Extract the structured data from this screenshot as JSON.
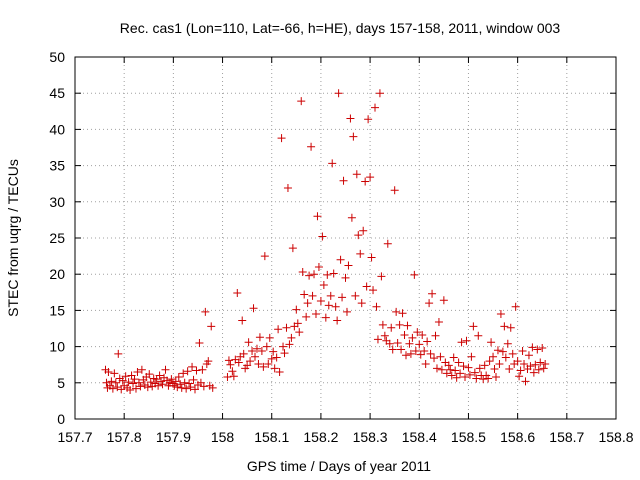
{
  "chart_data": {
    "type": "scatter",
    "title": "Rec. cas1 (Lon=110, Lat=-66, h=HE), days 157-158, 2011, window 003",
    "xlabel": "GPS time / Days of year 2011",
    "ylabel": "STEC from uqrg / TECUs",
    "xlim": [
      157.7,
      158.8
    ],
    "ylim": [
      0,
      50
    ],
    "xticks": [
      "157.7",
      "157.8",
      "157.9",
      "158",
      "158.1",
      "158.2",
      "158.3",
      "158.4",
      "158.5",
      "158.6",
      "158.7",
      "158.8"
    ],
    "yticks": [
      "0",
      "5",
      "10",
      "15",
      "20",
      "25",
      "30",
      "35",
      "40",
      "45",
      "50"
    ],
    "grid": true,
    "marker": "plus",
    "color": "#cc0000",
    "points": [
      [
        157.762,
        6.8
      ],
      [
        157.764,
        5.0
      ],
      [
        157.766,
        4.3
      ],
      [
        157.768,
        6.5
      ],
      [
        157.771,
        4.6
      ],
      [
        157.774,
        5.2
      ],
      [
        157.777,
        4.2
      ],
      [
        157.78,
        6.3
      ],
      [
        157.783,
        5.0
      ],
      [
        157.786,
        4.4
      ],
      [
        157.788,
        9.0
      ],
      [
        157.791,
        5.6
      ],
      [
        157.794,
        4.1
      ],
      [
        157.797,
        5.3
      ],
      [
        157.8,
        4.6
      ],
      [
        157.803,
        5.9
      ],
      [
        157.806,
        4.3
      ],
      [
        157.809,
        5.1
      ],
      [
        157.812,
        4.0
      ],
      [
        157.815,
        6.0
      ],
      [
        157.818,
        4.9
      ],
      [
        157.821,
        5.5
      ],
      [
        157.824,
        4.2
      ],
      [
        157.827,
        6.5
      ],
      [
        157.83,
        5.0
      ],
      [
        157.833,
        4.5
      ],
      [
        157.836,
        6.8
      ],
      [
        157.839,
        5.4
      ],
      [
        157.842,
        4.7
      ],
      [
        157.845,
        5.8
      ],
      [
        157.848,
        4.4
      ],
      [
        157.851,
        6.2
      ],
      [
        157.854,
        5.1
      ],
      [
        157.857,
        4.5
      ],
      [
        157.86,
        5.6
      ],
      [
        157.863,
        4.9
      ],
      [
        157.866,
        5.5
      ],
      [
        157.869,
        4.6
      ],
      [
        157.872,
        6.0
      ],
      [
        157.875,
        5.2
      ],
      [
        157.878,
        4.8
      ],
      [
        157.881,
        5.7
      ],
      [
        157.884,
        6.8
      ],
      [
        157.887,
        5.3
      ],
      [
        157.89,
        4.6
      ],
      [
        157.893,
        5.0
      ],
      [
        157.896,
        5.5
      ],
      [
        157.899,
        4.9
      ],
      [
        157.902,
        4.6
      ],
      [
        157.905,
        5.2
      ],
      [
        157.908,
        4.4
      ],
      [
        157.911,
        5.8
      ],
      [
        157.914,
        4.8
      ],
      [
        157.917,
        4.3
      ],
      [
        157.92,
        6.3
      ],
      [
        157.923,
        5.0
      ],
      [
        157.926,
        4.2
      ],
      [
        157.929,
        6.6
      ],
      [
        157.932,
        4.9
      ],
      [
        157.935,
        4.4
      ],
      [
        157.938,
        7.2
      ],
      [
        157.941,
        5.4
      ],
      [
        157.944,
        4.1
      ],
      [
        157.947,
        6.7
      ],
      [
        157.95,
        4.7
      ],
      [
        157.953,
        10.5
      ],
      [
        157.956,
        5.0
      ],
      [
        157.959,
        6.8
      ],
      [
        157.962,
        4.5
      ],
      [
        157.965,
        14.8
      ],
      [
        157.968,
        7.6
      ],
      [
        157.971,
        8.0
      ],
      [
        157.974,
        4.6
      ],
      [
        157.977,
        12.8
      ],
      [
        157.98,
        4.3
      ],
      [
        158.01,
        5.8
      ],
      [
        158.013,
        8.1
      ],
      [
        158.016,
        7.5
      ],
      [
        158.02,
        6.6
      ],
      [
        158.023,
        5.9
      ],
      [
        158.026,
        8.2
      ],
      [
        158.03,
        17.4
      ],
      [
        158.033,
        7.8
      ],
      [
        158.036,
        8.6
      ],
      [
        158.04,
        13.6
      ],
      [
        158.043,
        9.0
      ],
      [
        158.046,
        7.0
      ],
      [
        158.05,
        7.4
      ],
      [
        158.053,
        10.6
      ],
      [
        158.056,
        8.0
      ],
      [
        158.06,
        9.4
      ],
      [
        158.063,
        15.3
      ],
      [
        158.066,
        8.6
      ],
      [
        158.07,
        9.7
      ],
      [
        158.073,
        7.6
      ],
      [
        158.076,
        11.3
      ],
      [
        158.08,
        9.4
      ],
      [
        158.083,
        7.2
      ],
      [
        158.086,
        22.5
      ],
      [
        158.09,
        10.0
      ],
      [
        158.093,
        7.6
      ],
      [
        158.096,
        11.2
      ],
      [
        158.1,
        8.3
      ],
      [
        158.103,
        9.3
      ],
      [
        158.106,
        7.0
      ],
      [
        158.11,
        8.5
      ],
      [
        158.113,
        12.4
      ],
      [
        158.116,
        6.5
      ],
      [
        158.12,
        38.8
      ],
      [
        158.123,
        10.0
      ],
      [
        158.126,
        9.1
      ],
      [
        158.13,
        12.6
      ],
      [
        158.133,
        31.9
      ],
      [
        158.136,
        10.3
      ],
      [
        158.14,
        11.2
      ],
      [
        158.143,
        23.6
      ],
      [
        158.146,
        12.8
      ],
      [
        158.15,
        15.1
      ],
      [
        158.153,
        13.2
      ],
      [
        158.156,
        12.0
      ],
      [
        158.16,
        43.9
      ],
      [
        158.163,
        20.3
      ],
      [
        158.166,
        17.2
      ],
      [
        158.17,
        14.1
      ],
      [
        158.173,
        16.0
      ],
      [
        158.176,
        19.8
      ],
      [
        158.18,
        37.6
      ],
      [
        158.183,
        17.0
      ],
      [
        158.186,
        20.0
      ],
      [
        158.19,
        14.5
      ],
      [
        158.193,
        28.0
      ],
      [
        158.196,
        21.0
      ],
      [
        158.2,
        16.3
      ],
      [
        158.203,
        25.2
      ],
      [
        158.206,
        18.5
      ],
      [
        158.21,
        14.0
      ],
      [
        158.213,
        19.9
      ],
      [
        158.216,
        15.7
      ],
      [
        158.22,
        17.0
      ],
      [
        158.223,
        35.3
      ],
      [
        158.226,
        20.1
      ],
      [
        158.23,
        15.5
      ],
      [
        158.233,
        13.6
      ],
      [
        158.236,
        45.0
      ],
      [
        158.24,
        22.0
      ],
      [
        158.243,
        16.8
      ],
      [
        158.246,
        32.9
      ],
      [
        158.25,
        19.5
      ],
      [
        158.253,
        14.8
      ],
      [
        158.256,
        21.2
      ],
      [
        158.26,
        41.5
      ],
      [
        158.263,
        27.8
      ],
      [
        158.266,
        39.0
      ],
      [
        158.27,
        17.0
      ],
      [
        158.273,
        33.8
      ],
      [
        158.276,
        25.4
      ],
      [
        158.28,
        22.8
      ],
      [
        158.283,
        16.0
      ],
      [
        158.286,
        26.0
      ],
      [
        158.29,
        32.8
      ],
      [
        158.293,
        18.3
      ],
      [
        158.296,
        41.4
      ],
      [
        158.3,
        33.4
      ],
      [
        158.303,
        22.3
      ],
      [
        158.306,
        17.8
      ],
      [
        158.31,
        43.0
      ],
      [
        158.313,
        15.5
      ],
      [
        158.316,
        11.0
      ],
      [
        158.32,
        45.0
      ],
      [
        158.323,
        19.7
      ],
      [
        158.326,
        13.0
      ],
      [
        158.33,
        11.5
      ],
      [
        158.333,
        10.8
      ],
      [
        158.336,
        24.2
      ],
      [
        158.34,
        10.4
      ],
      [
        158.343,
        12.6
      ],
      [
        158.346,
        9.6
      ],
      [
        158.35,
        31.6
      ],
      [
        158.353,
        14.8
      ],
      [
        158.356,
        10.5
      ],
      [
        158.36,
        13.0
      ],
      [
        158.363,
        9.6
      ],
      [
        158.366,
        14.6
      ],
      [
        158.37,
        11.6
      ],
      [
        158.373,
        8.8
      ],
      [
        158.376,
        12.9
      ],
      [
        158.38,
        10.4
      ],
      [
        158.383,
        9.0
      ],
      [
        158.386,
        11.2
      ],
      [
        158.39,
        19.9
      ],
      [
        158.393,
        9.4
      ],
      [
        158.396,
        12.0
      ],
      [
        158.4,
        10.3
      ],
      [
        158.403,
        8.9
      ],
      [
        158.406,
        11.6
      ],
      [
        158.41,
        9.4
      ],
      [
        158.413,
        7.6
      ],
      [
        158.416,
        10.7
      ],
      [
        158.42,
        16.0
      ],
      [
        158.423,
        9.0
      ],
      [
        158.426,
        17.3
      ],
      [
        158.43,
        8.4
      ],
      [
        158.433,
        11.5
      ],
      [
        158.436,
        7.0
      ],
      [
        158.44,
        13.4
      ],
      [
        158.443,
        8.6
      ],
      [
        158.446,
        6.8
      ],
      [
        158.45,
        16.4
      ],
      [
        158.453,
        7.8
      ],
      [
        158.456,
        6.3
      ],
      [
        158.46,
        7.4
      ],
      [
        158.463,
        6.8
      ],
      [
        158.466,
        6.0
      ],
      [
        158.47,
        8.5
      ],
      [
        158.473,
        6.7
      ],
      [
        158.476,
        5.7
      ],
      [
        158.48,
        7.8
      ],
      [
        158.483,
        6.3
      ],
      [
        158.486,
        10.6
      ],
      [
        158.49,
        7.3
      ],
      [
        158.493,
        5.8
      ],
      [
        158.496,
        10.8
      ],
      [
        158.5,
        7.1
      ],
      [
        158.503,
        6.1
      ],
      [
        158.506,
        8.6
      ],
      [
        158.51,
        12.8
      ],
      [
        158.513,
        6.4
      ],
      [
        158.516,
        5.6
      ],
      [
        158.52,
        11.5
      ],
      [
        158.523,
        7.0
      ],
      [
        158.526,
        6.0
      ],
      [
        158.53,
        5.5
      ],
      [
        158.533,
        7.4
      ],
      [
        158.536,
        6.0
      ],
      [
        158.54,
        5.6
      ],
      [
        158.543,
        8.0
      ],
      [
        158.546,
        10.6
      ],
      [
        158.55,
        8.6
      ],
      [
        158.553,
        6.9
      ],
      [
        158.556,
        5.8
      ],
      [
        158.56,
        9.5
      ],
      [
        158.563,
        7.6
      ],
      [
        158.566,
        14.5
      ],
      [
        158.57,
        9.3
      ],
      [
        158.573,
        12.8
      ],
      [
        158.576,
        8.5
      ],
      [
        158.58,
        10.4
      ],
      [
        158.583,
        6.9
      ],
      [
        158.586,
        12.6
      ],
      [
        158.59,
        9.0
      ],
      [
        158.593,
        7.6
      ],
      [
        158.596,
        15.5
      ],
      [
        158.6,
        8.0
      ],
      [
        158.603,
        5.9
      ],
      [
        158.606,
        6.7
      ],
      [
        158.61,
        9.4
      ],
      [
        158.613,
        7.6
      ],
      [
        158.616,
        5.2
      ],
      [
        158.62,
        6.9
      ],
      [
        158.623,
        8.8
      ],
      [
        158.626,
        7.3
      ],
      [
        158.63,
        9.9
      ],
      [
        158.633,
        6.4
      ],
      [
        158.636,
        7.5
      ],
      [
        158.64,
        9.6
      ],
      [
        158.643,
        6.8
      ],
      [
        158.646,
        7.8
      ],
      [
        158.65,
        9.8
      ],
      [
        158.653,
        7.0
      ],
      [
        158.656,
        7.6
      ]
    ]
  }
}
